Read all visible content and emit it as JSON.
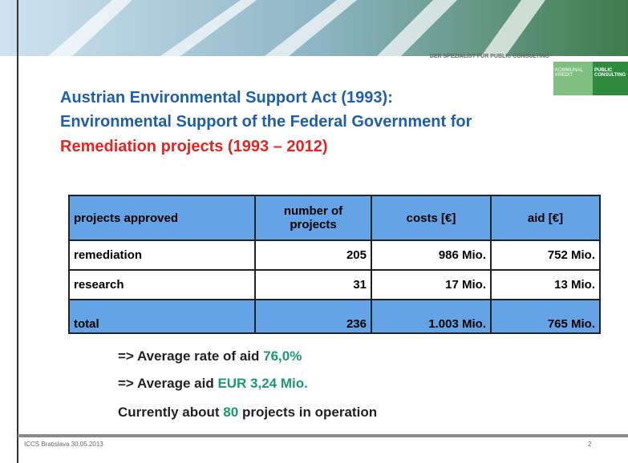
{
  "header": {
    "tagline": "DER SPEZIALIST FÜR PUBLIC CONSULTING",
    "logo": [
      "KOMMUNAL",
      "KREDIT",
      "PUBLIC",
      "CONSULTING"
    ]
  },
  "title": {
    "lines": [
      "Austrian Environmental Support Act (1993):",
      "Environmental Support of the Federal Government for"
    ],
    "highlight": "Remediation projects (1993 – 2012)"
  },
  "table": {
    "header": [
      "projects approved",
      "number of projects",
      "costs [€]",
      "aid [€]"
    ],
    "rows": [
      [
        "remediation",
        205,
        "986 Mio.",
        "752 Mio."
      ],
      [
        "research",
        31,
        "17 Mio.",
        "13 Mio."
      ],
      [
        "total",
        236,
        "1.003 Mio.",
        "765 Mio."
      ]
    ]
  },
  "bullets": [
    [
      "=> Average rate of aid",
      "76,0%"
    ],
    [
      "=> Average aid",
      "EUR 3,24 Mio."
    ],
    [
      "Currently about",
      "80",
      "projects in operation"
    ]
  ],
  "footer": {
    "left": "ICCS Bratislava 30.05.2013",
    "page": "2"
  }
}
